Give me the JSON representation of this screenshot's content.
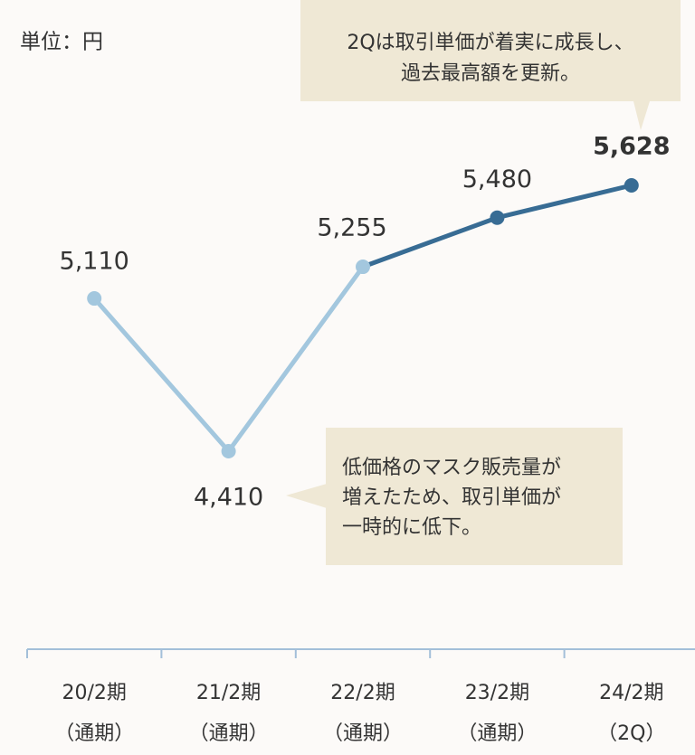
{
  "chart_data": {
    "type": "line",
    "unit_label": "単位：円",
    "categories": [
      [
        "20/2期",
        "（通期）"
      ],
      [
        "21/2期",
        "（通期）"
      ],
      [
        "22/2期",
        "（通期）"
      ],
      [
        "23/2期",
        "（通期）"
      ],
      [
        "24/2期",
        "（2Q）"
      ]
    ],
    "values": [
      5110,
      4410,
      5255,
      5480,
      5628
    ],
    "value_labels": [
      "5,110",
      "4,410",
      "5,255",
      "5,480",
      "5,628"
    ],
    "point_colors": [
      "#a3c7de",
      "#a3c7de",
      "#a3c7de",
      "#386c94",
      "#386c94"
    ],
    "label_weights": [
      "normal",
      "normal",
      "normal",
      "normal",
      "bold"
    ],
    "annotations": [
      {
        "lines": [
          "2Qは取引単価が着実に成長し、",
          "過去最高額を更新。"
        ]
      },
      {
        "lines": [
          "低価格のマスク販売量が",
          "増えたため、取引単価が",
          "一時的に低下。"
        ]
      }
    ]
  }
}
